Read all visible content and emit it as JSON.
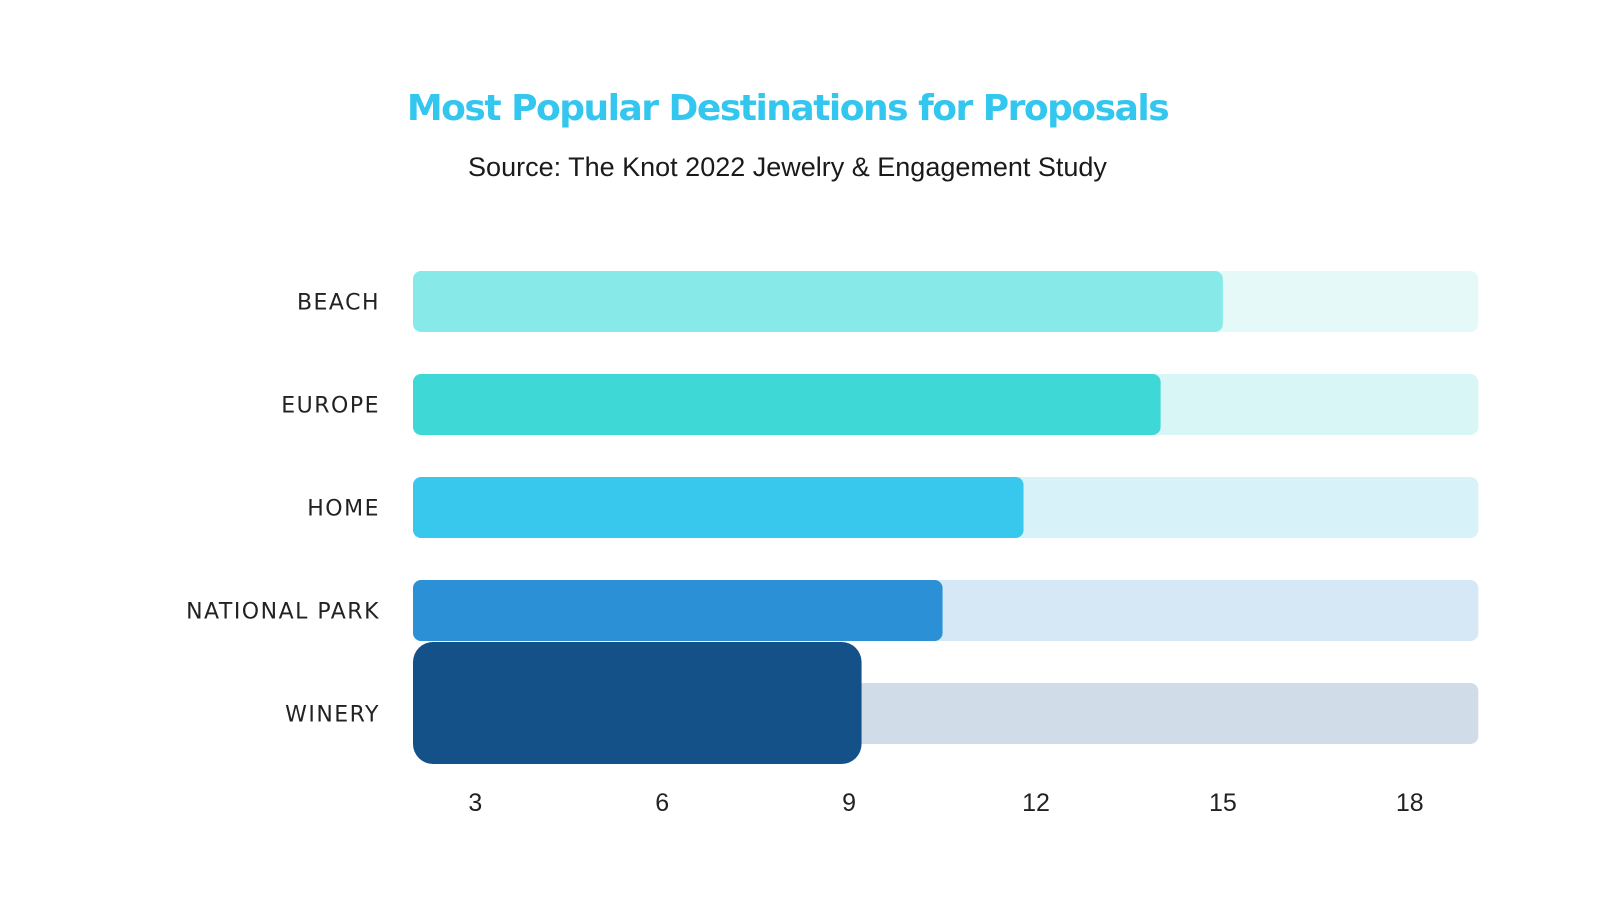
{
  "chart_data": {
    "type": "bar",
    "orientation": "horizontal",
    "title": "Most Popular Destinations for Proposals",
    "subtitle": "Source: The Knot 2022 Jewelry & Engagement Study",
    "categories": [
      "BEACH",
      "EUROPE",
      "HOME",
      "NATIONAL PARK",
      "WINERY"
    ],
    "values": [
      15,
      14,
      11.8,
      10.5,
      9.2
    ],
    "track_max": 19.1,
    "xlim": [
      2,
      19.1
    ],
    "xticks": [
      3,
      6,
      9,
      12,
      15,
      18
    ],
    "xlabel": "",
    "ylabel": "",
    "grid": false,
    "legend": "none",
    "colors": {
      "bars": [
        "#88eae8",
        "#3ed9d6",
        "#38c8ee",
        "#2b90d5",
        "#145189"
      ],
      "tracks": [
        "#e5f9f9",
        "#d7f6f5",
        "#d8f2fa",
        "#d6e8f5",
        "#d0dde8"
      ]
    }
  }
}
